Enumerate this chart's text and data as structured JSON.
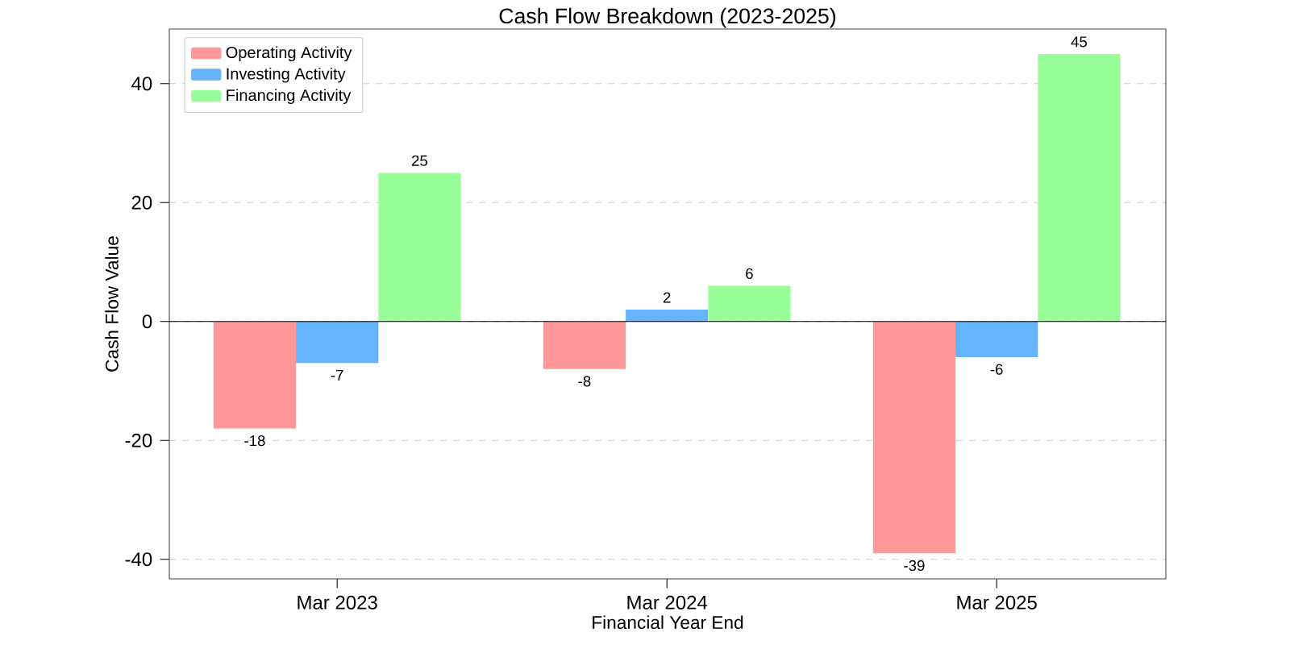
{
  "chart_data": {
    "type": "bar",
    "title": "Cash Flow Breakdown (2023-2025)",
    "xlabel": "Financial Year End",
    "ylabel": "Cash Flow Value",
    "categories": [
      "Mar 2023",
      "Mar 2024",
      "Mar 2025"
    ],
    "series": [
      {
        "name": "Operating Activity",
        "color": "#ff9999",
        "values": [
          -18,
          -8,
          -39
        ]
      },
      {
        "name": "Investing Activity",
        "color": "#66b3ff",
        "values": [
          -7,
          2,
          -6
        ]
      },
      {
        "name": "Financing Activity",
        "color": "#99ff99",
        "values": [
          25,
          6,
          45
        ]
      }
    ],
    "ylim": [
      -43.3,
      49.2
    ],
    "yticks": [
      -40,
      -20,
      0,
      20,
      40
    ],
    "grid": "y",
    "legend": "top left",
    "data_labels": true,
    "ref_lines": [
      {
        "axis": "y",
        "value": 0,
        "color": "#000000"
      }
    ]
  }
}
